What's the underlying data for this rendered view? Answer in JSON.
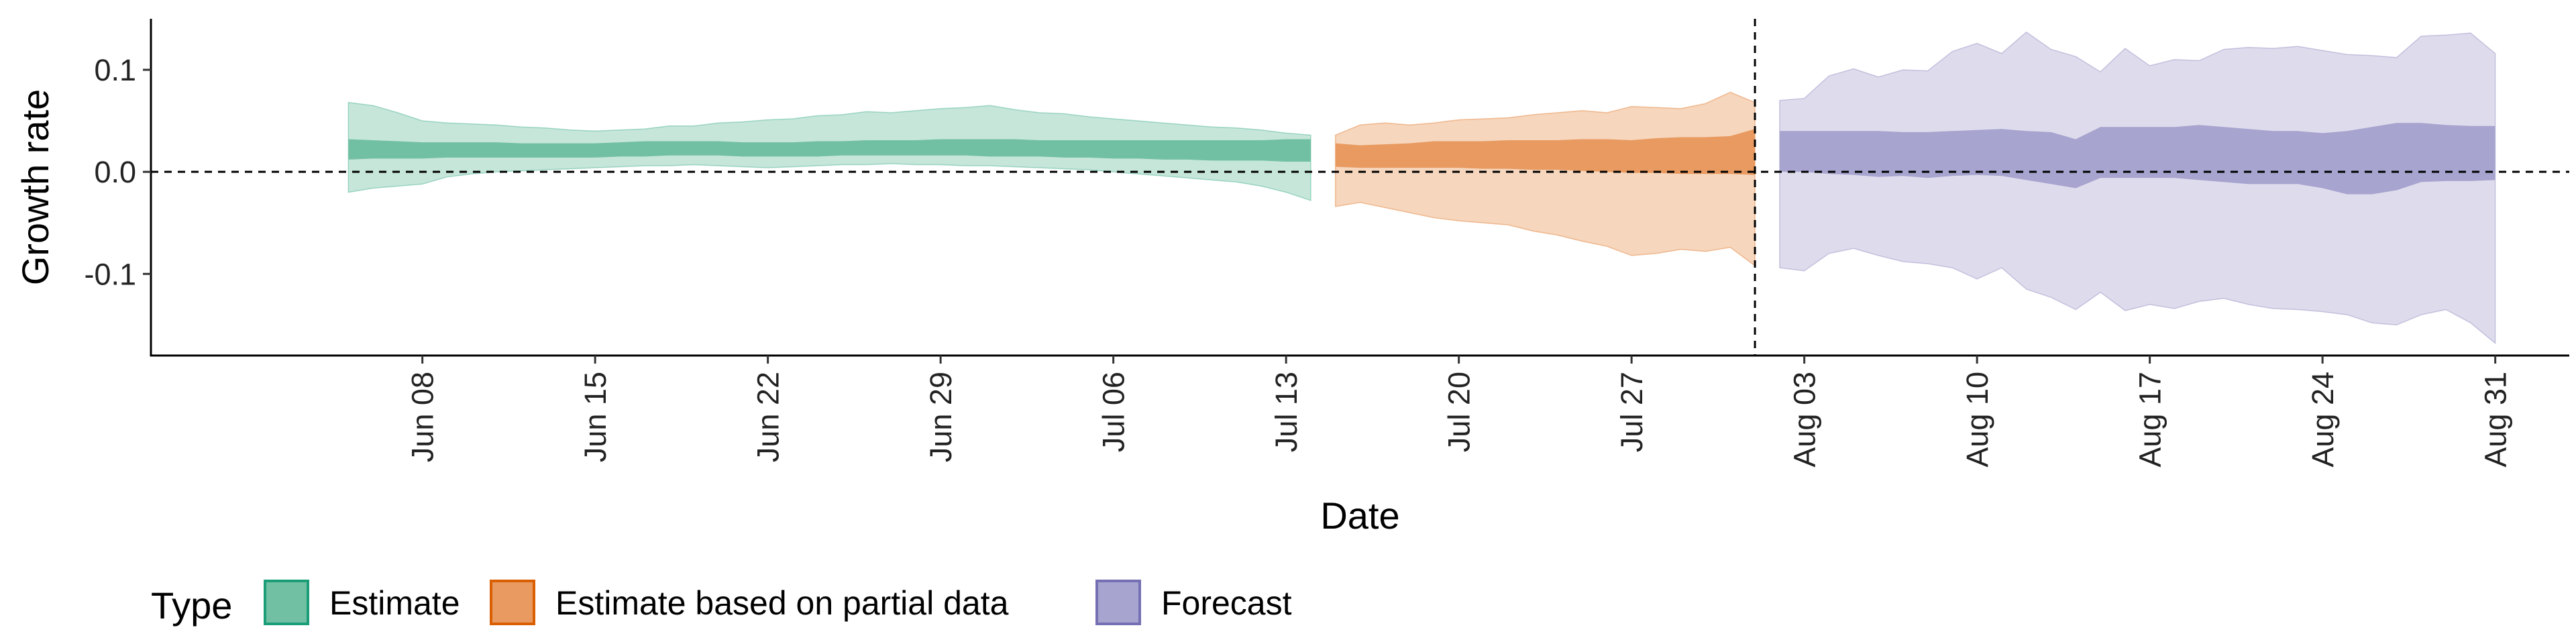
{
  "chart_data": {
    "type": "area",
    "title": "",
    "xlabel": "Date",
    "ylabel": "Growth rate",
    "ylim": [
      -0.18,
      0.15
    ],
    "xlim": [
      "2021-05-28",
      "2021-09-03"
    ],
    "y_ticks": [
      {
        "value": 0.1,
        "label": "0.1"
      },
      {
        "value": 0.0,
        "label": "0.0"
      },
      {
        "value": -0.1,
        "label": "-0.1"
      }
    ],
    "x_ticks": [
      {
        "date": "2021-06-08",
        "label": "Jun 08"
      },
      {
        "date": "2021-06-15",
        "label": "Jun 15"
      },
      {
        "date": "2021-06-22",
        "label": "Jun 22"
      },
      {
        "date": "2021-06-29",
        "label": "Jun 29"
      },
      {
        "date": "2021-07-06",
        "label": "Jul 06"
      },
      {
        "date": "2021-07-13",
        "label": "Jul 13"
      },
      {
        "date": "2021-07-20",
        "label": "Jul 20"
      },
      {
        "date": "2021-07-27",
        "label": "Jul 27"
      },
      {
        "date": "2021-08-03",
        "label": "Aug 03"
      },
      {
        "date": "2021-08-10",
        "label": "Aug 10"
      },
      {
        "date": "2021-08-17",
        "label": "Aug 17"
      },
      {
        "date": "2021-08-24",
        "label": "Aug 24"
      },
      {
        "date": "2021-08-31",
        "label": "Aug 31"
      }
    ],
    "hline": 0.0,
    "vline_date": "2021-08-01",
    "grid": false,
    "legend": {
      "title": "Type",
      "placement": "bottom-left",
      "entries": [
        "Estimate",
        "Estimate based on partial data",
        "Forecast"
      ]
    },
    "series": [
      {
        "name": "Estimate",
        "fill_light": "#c6e6da",
        "fill_dark": "#72c0a4",
        "stroke": "#1b9e77",
        "dates": [
          "2021-06-05",
          "2021-06-06",
          "2021-06-07",
          "2021-06-08",
          "2021-06-09",
          "2021-06-10",
          "2021-06-11",
          "2021-06-12",
          "2021-06-13",
          "2021-06-14",
          "2021-06-15",
          "2021-06-16",
          "2021-06-17",
          "2021-06-18",
          "2021-06-19",
          "2021-06-20",
          "2021-06-21",
          "2021-06-22",
          "2021-06-23",
          "2021-06-24",
          "2021-06-25",
          "2021-06-26",
          "2021-06-27",
          "2021-06-28",
          "2021-06-29",
          "2021-06-30",
          "2021-07-01",
          "2021-07-02",
          "2021-07-03",
          "2021-07-04",
          "2021-07-05",
          "2021-07-06",
          "2021-07-07",
          "2021-07-08",
          "2021-07-09",
          "2021-07-10",
          "2021-07-11",
          "2021-07-12",
          "2021-07-13",
          "2021-07-14"
        ],
        "upper90": [
          0.068,
          0.065,
          0.058,
          0.05,
          0.048,
          0.047,
          0.046,
          0.044,
          0.043,
          0.041,
          0.04,
          0.041,
          0.042,
          0.045,
          0.045,
          0.048,
          0.049,
          0.051,
          0.052,
          0.055,
          0.056,
          0.059,
          0.058,
          0.06,
          0.062,
          0.063,
          0.065,
          0.061,
          0.058,
          0.057,
          0.054,
          0.052,
          0.05,
          0.048,
          0.046,
          0.044,
          0.043,
          0.041,
          0.038,
          0.036
        ],
        "lower90": [
          -0.02,
          -0.016,
          -0.014,
          -0.012,
          -0.005,
          -0.002,
          0.0,
          0.001,
          0.002,
          0.003,
          0.004,
          0.005,
          0.006,
          0.006,
          0.007,
          0.006,
          0.005,
          0.004,
          0.005,
          0.006,
          0.007,
          0.007,
          0.008,
          0.007,
          0.007,
          0.006,
          0.006,
          0.005,
          0.004,
          0.003,
          0.002,
          0.0,
          -0.002,
          -0.004,
          -0.006,
          -0.008,
          -0.01,
          -0.014,
          -0.02,
          -0.028
        ],
        "upper50": [
          0.032,
          0.031,
          0.03,
          0.029,
          0.029,
          0.029,
          0.029,
          0.028,
          0.028,
          0.028,
          0.028,
          0.029,
          0.03,
          0.03,
          0.03,
          0.03,
          0.029,
          0.029,
          0.029,
          0.03,
          0.03,
          0.031,
          0.031,
          0.031,
          0.032,
          0.032,
          0.032,
          0.032,
          0.031,
          0.031,
          0.031,
          0.031,
          0.031,
          0.031,
          0.031,
          0.031,
          0.031,
          0.031,
          0.032,
          0.032
        ],
        "lower50": [
          0.012,
          0.013,
          0.013,
          0.013,
          0.014,
          0.014,
          0.014,
          0.014,
          0.014,
          0.014,
          0.014,
          0.015,
          0.015,
          0.016,
          0.016,
          0.016,
          0.015,
          0.015,
          0.015,
          0.015,
          0.016,
          0.016,
          0.016,
          0.016,
          0.016,
          0.016,
          0.015,
          0.015,
          0.015,
          0.014,
          0.014,
          0.013,
          0.013,
          0.012,
          0.012,
          0.011,
          0.011,
          0.011,
          0.01,
          0.01
        ]
      },
      {
        "name": "Estimate based on partial data",
        "fill_light": "#f6d6bd",
        "fill_dark": "#e89a60",
        "stroke": "#d95f02",
        "dates": [
          "2021-07-15",
          "2021-07-16",
          "2021-07-17",
          "2021-07-18",
          "2021-07-19",
          "2021-07-20",
          "2021-07-21",
          "2021-07-22",
          "2021-07-23",
          "2021-07-24",
          "2021-07-25",
          "2021-07-26",
          "2021-07-27",
          "2021-07-28",
          "2021-07-29",
          "2021-07-30",
          "2021-07-31",
          "2021-08-01"
        ],
        "upper90": [
          0.036,
          0.046,
          0.048,
          0.046,
          0.048,
          0.051,
          0.052,
          0.053,
          0.056,
          0.058,
          0.06,
          0.058,
          0.064,
          0.063,
          0.062,
          0.067,
          0.078,
          0.068
        ],
        "lower90": [
          -0.034,
          -0.03,
          -0.035,
          -0.04,
          -0.045,
          -0.048,
          -0.05,
          -0.052,
          -0.058,
          -0.062,
          -0.068,
          -0.073,
          -0.082,
          -0.08,
          -0.076,
          -0.078,
          -0.074,
          -0.092
        ],
        "upper50": [
          0.028,
          0.026,
          0.027,
          0.028,
          0.03,
          0.03,
          0.03,
          0.031,
          0.031,
          0.031,
          0.032,
          0.032,
          0.031,
          0.033,
          0.034,
          0.034,
          0.035,
          0.042
        ],
        "lower50": [
          0.005,
          0.004,
          0.004,
          0.004,
          0.004,
          0.004,
          0.003,
          0.003,
          0.002,
          0.002,
          0.001,
          0.0,
          -0.001,
          -0.001,
          -0.002,
          -0.002,
          -0.002,
          -0.003
        ]
      },
      {
        "name": "Forecast",
        "fill_light": "#dedcec",
        "fill_dark": "#a7a4cf",
        "stroke": "#7570b3",
        "dates": [
          "2021-08-02",
          "2021-08-03",
          "2021-08-04",
          "2021-08-05",
          "2021-08-06",
          "2021-08-07",
          "2021-08-08",
          "2021-08-09",
          "2021-08-10",
          "2021-08-11",
          "2021-08-12",
          "2021-08-13",
          "2021-08-14",
          "2021-08-15",
          "2021-08-16",
          "2021-08-17",
          "2021-08-18",
          "2021-08-19",
          "2021-08-20",
          "2021-08-21",
          "2021-08-22",
          "2021-08-23",
          "2021-08-24",
          "2021-08-25",
          "2021-08-26",
          "2021-08-27",
          "2021-08-28",
          "2021-08-29",
          "2021-08-30",
          "2021-08-31"
        ],
        "upper90": [
          0.07,
          0.072,
          0.094,
          0.101,
          0.093,
          0.1,
          0.099,
          0.118,
          0.126,
          0.116,
          0.137,
          0.12,
          0.113,
          0.098,
          0.121,
          0.104,
          0.11,
          0.109,
          0.12,
          0.122,
          0.121,
          0.123,
          0.119,
          0.115,
          0.114,
          0.112,
          0.133,
          0.134,
          0.136,
          0.116
        ],
        "lower90": [
          -0.094,
          -0.097,
          -0.08,
          -0.075,
          -0.082,
          -0.088,
          -0.09,
          -0.094,
          -0.105,
          -0.094,
          -0.115,
          -0.123,
          -0.135,
          -0.118,
          -0.136,
          -0.13,
          -0.134,
          -0.127,
          -0.124,
          -0.13,
          -0.134,
          -0.135,
          -0.137,
          -0.14,
          -0.148,
          -0.15,
          -0.14,
          -0.135,
          -0.148,
          -0.168
        ],
        "upper50": [
          0.04,
          0.04,
          0.04,
          0.04,
          0.04,
          0.039,
          0.039,
          0.04,
          0.041,
          0.042,
          0.04,
          0.039,
          0.032,
          0.044,
          0.044,
          0.044,
          0.044,
          0.046,
          0.044,
          0.042,
          0.04,
          0.04,
          0.038,
          0.04,
          0.044,
          0.048,
          0.048,
          0.046,
          0.045,
          0.045
        ],
        "lower50": [
          0.0,
          0.0,
          -0.002,
          -0.003,
          -0.005,
          -0.004,
          -0.006,
          -0.004,
          -0.003,
          -0.004,
          -0.008,
          -0.012,
          -0.016,
          -0.006,
          -0.006,
          -0.006,
          -0.006,
          -0.008,
          -0.01,
          -0.012,
          -0.012,
          -0.012,
          -0.016,
          -0.022,
          -0.022,
          -0.018,
          -0.01,
          -0.009,
          -0.009,
          -0.008
        ]
      }
    ]
  }
}
